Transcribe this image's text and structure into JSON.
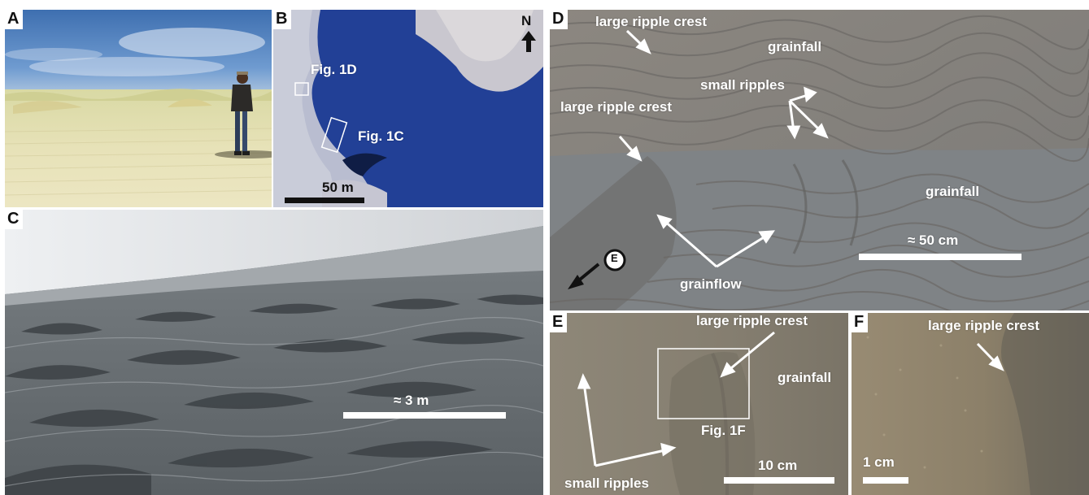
{
  "colors": {
    "annotation": "#ffffff",
    "panel_label_bg": "#ffffff",
    "sky": "#4a78b5",
    "sand_light": "#e3dfb3",
    "water_blue": "#1c3a8e",
    "dune_gray": "#6d7478",
    "mars_sand": "#8c7f6a"
  },
  "panels": {
    "a": {
      "label": "A"
    },
    "b": {
      "label": "B",
      "box_d_label": "Fig. 1D",
      "box_c_label": "Fig. 1C",
      "scale_label": "50 m",
      "north_label": "N"
    },
    "c": {
      "label": "C",
      "scale_label": "≈ 3 m"
    },
    "d": {
      "label": "D",
      "crest_top": "large ripple crest",
      "grainfall_top": "grainfall",
      "small_ripples": "small ripples",
      "crest_mid": "large ripple crest",
      "grainfall_bottom": "grainfall",
      "scale_label": "≈ 50 cm",
      "grainflow": "grainflow",
      "direction_marker": "E"
    },
    "e": {
      "label": "E",
      "crest": "large ripple crest",
      "grainfall": "grainfall",
      "box_label": "Fig. 1F",
      "scale_label": "10 cm",
      "small_ripples": "small ripples"
    },
    "f": {
      "label": "F",
      "crest": "large ripple crest",
      "scale_label": "1 cm"
    }
  }
}
